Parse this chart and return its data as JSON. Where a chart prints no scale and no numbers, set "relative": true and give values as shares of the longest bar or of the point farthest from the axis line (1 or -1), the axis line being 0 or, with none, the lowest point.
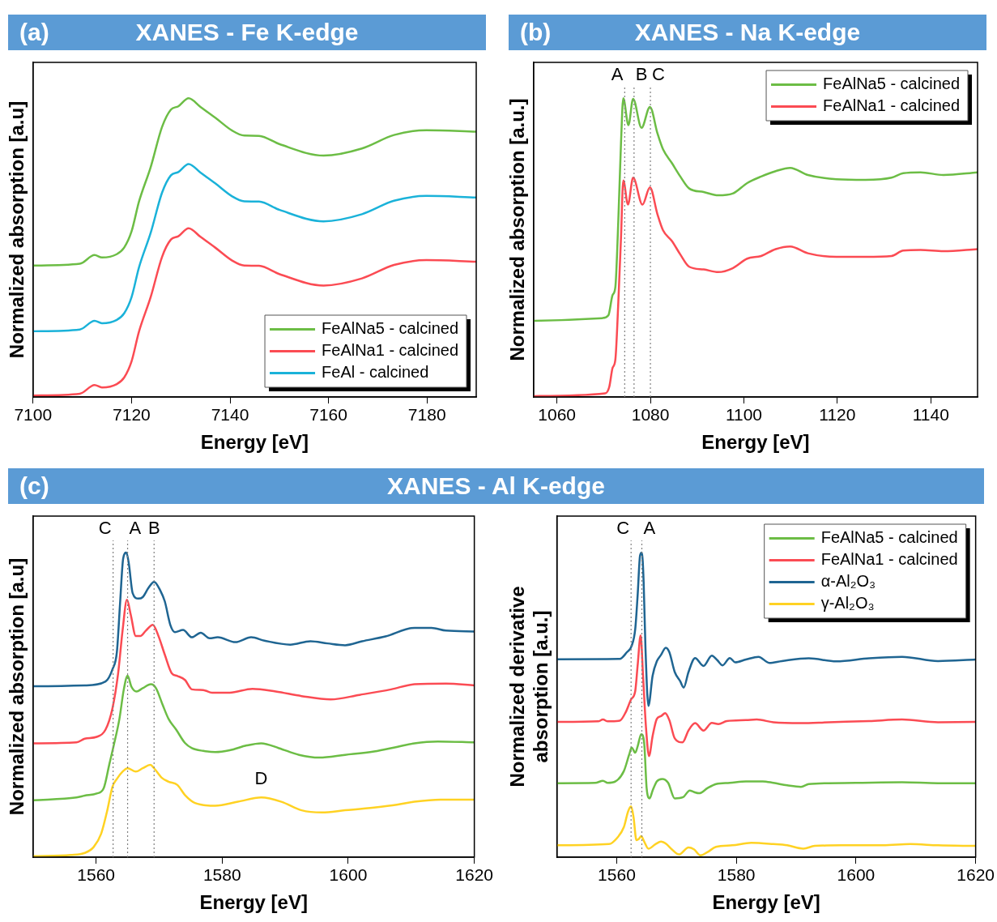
{
  "chart_data": [
    {
      "type": "line",
      "title": "XANES - Fe K-edge",
      "annotations": [
        "(a)"
      ],
      "xlabel": "Energy [eV]",
      "ylabel": "Normalized absorption [a.u]",
      "relative": true,
      "xlim": [
        7100,
        7190
      ],
      "xticks": [
        7100,
        7120,
        7140,
        7160,
        7180
      ],
      "legend": "bottom right",
      "marker": "none",
      "line_style": "solid",
      "grid": false,
      "series": [
        {
          "name": "FeAlNa5 - calcined",
          "color": "#6cbd45",
          "x": [
            7100,
            7109.5,
            7112.5,
            7114,
            7117,
            7118.5,
            7120,
            7121.5,
            7123.9,
            7126.2,
            7128,
            7129.5,
            7131.6,
            7134,
            7137,
            7140.5,
            7142.9,
            7145.9,
            7150.1,
            7159,
            7166.8,
            7173.3,
            7179.9,
            7190
          ],
          "values": [
            0.44,
            0.446,
            0.475,
            0.467,
            0.478,
            0.5,
            0.554,
            0.653,
            0.77,
            0.904,
            0.962,
            0.973,
            1.0,
            0.971,
            0.935,
            0.891,
            0.875,
            0.874,
            0.846,
            0.808,
            0.832,
            0.877,
            0.893,
            0.888
          ]
        },
        {
          "name": "FeAlNa1 - calcined",
          "color": "#fb4b53",
          "x": [
            7100,
            7109.5,
            7112.5,
            7114,
            7117,
            7118.5,
            7120,
            7121.5,
            7123.9,
            7126.2,
            7128,
            7129.5,
            7131.6,
            7134,
            7137,
            7140.5,
            7142.9,
            7145.9,
            7150.1,
            7159,
            7166.8,
            7173.3,
            7179.9,
            7190
          ],
          "values": [
            0.005,
            0.011,
            0.04,
            0.032,
            0.043,
            0.065,
            0.119,
            0.218,
            0.335,
            0.469,
            0.527,
            0.538,
            0.565,
            0.536,
            0.5,
            0.456,
            0.44,
            0.439,
            0.411,
            0.373,
            0.397,
            0.442,
            0.458,
            0.453
          ]
        },
        {
          "name": "FeAl - calcined",
          "color": "#1ab2d9",
          "x": [
            7100,
            7109.5,
            7112.5,
            7114,
            7117,
            7118.5,
            7120,
            7121.5,
            7123.9,
            7126.2,
            7128,
            7129.5,
            7131.6,
            7134,
            7137,
            7140.5,
            7142.9,
            7145.9,
            7150.1,
            7159,
            7166.8,
            7173.3,
            7179.9,
            7190
          ],
          "values": [
            0.22,
            0.226,
            0.255,
            0.247,
            0.258,
            0.28,
            0.334,
            0.433,
            0.55,
            0.684,
            0.742,
            0.753,
            0.78,
            0.751,
            0.715,
            0.671,
            0.655,
            0.654,
            0.626,
            0.588,
            0.612,
            0.657,
            0.673,
            0.668
          ]
        }
      ]
    },
    {
      "type": "line",
      "title": "XANES - Na K-edge",
      "annotations": [
        "(b)"
      ],
      "xlabel": "Energy [eV]",
      "ylabel": "Normalized absorption [a.u.]",
      "relative": true,
      "xlim": [
        1055,
        1150
      ],
      "xticks": [
        1060,
        1080,
        1100,
        1120,
        1140
      ],
      "legend": "top right",
      "marker": "none",
      "line_style": "solid",
      "grid": false,
      "ref_lines": [
        {
          "axis": "x",
          "value": 1074.5,
          "label": "A",
          "color": "#808080",
          "line_style": "dotted"
        },
        {
          "axis": "x",
          "value": 1076.5,
          "label": "B",
          "color": "#808080",
          "line_style": "dotted"
        },
        {
          "axis": "x",
          "value": 1080,
          "label": "C",
          "color": "#808080",
          "line_style": "dotted"
        }
      ],
      "series": [
        {
          "name": "FeAlNa5 - calcined",
          "color": "#6cbd45",
          "x": [
            1055,
            1069.7,
            1071,
            1071.9,
            1072.5,
            1073.1,
            1073.7,
            1074.2,
            1075.3,
            1076.3,
            1078.1,
            1079.9,
            1081.5,
            1082.7,
            1084.6,
            1086.4,
            1088.3,
            1091.4,
            1094.5,
            1097.6,
            1100.7,
            1103.7,
            1106.8,
            1109.9,
            1113.7,
            1119.8,
            1126,
            1131.6,
            1134.1,
            1137.8,
            1142.7,
            1150
          ],
          "values": [
            0.255,
            0.264,
            0.273,
            0.341,
            0.368,
            0.576,
            0.847,
            1.0,
            0.91,
            0.998,
            0.901,
            0.971,
            0.883,
            0.829,
            0.783,
            0.738,
            0.698,
            0.686,
            0.675,
            0.681,
            0.716,
            0.738,
            0.756,
            0.767,
            0.743,
            0.729,
            0.727,
            0.734,
            0.749,
            0.752,
            0.743,
            0.752
          ]
        },
        {
          "name": "FeAlNa1 - calcined",
          "color": "#fb4b53",
          "x": [
            1055,
            1070.3,
            1071.2,
            1071.9,
            1072.5,
            1073.1,
            1073.7,
            1074.2,
            1075.2,
            1076.3,
            1078.3,
            1079.9,
            1081.5,
            1082.7,
            1084.6,
            1086.4,
            1088.3,
            1091.4,
            1094.5,
            1097.6,
            1100.7,
            1103.7,
            1106.8,
            1109.9,
            1113.7,
            1119.8,
            1126,
            1131.6,
            1134.1,
            1137.8,
            1142.7,
            1150
          ],
          "values": [
            0.003,
            0.012,
            0.034,
            0.097,
            0.125,
            0.305,
            0.531,
            0.725,
            0.644,
            0.734,
            0.644,
            0.702,
            0.612,
            0.558,
            0.522,
            0.477,
            0.436,
            0.427,
            0.418,
            0.431,
            0.463,
            0.472,
            0.495,
            0.504,
            0.481,
            0.469,
            0.469,
            0.472,
            0.49,
            0.492,
            0.488,
            0.495
          ]
        }
      ]
    },
    {
      "type": "line",
      "title": "XANES - Al K-edge",
      "annotations": [
        "(c)",
        {
          "text": "D",
          "x": 1586.2,
          "y": 0.196
        }
      ],
      "xlabel": "Energy [eV]",
      "ylabel": "Normalized absorption [a.u]",
      "relative": true,
      "xlim": [
        1550,
        1620
      ],
      "xticks": [
        1560,
        1580,
        1600,
        1620
      ],
      "marker": "none",
      "line_style": "solid",
      "grid": false,
      "ref_lines": [
        {
          "axis": "x",
          "value": 1562.7,
          "label": "C",
          "color": "#808080",
          "line_style": "dotted"
        },
        {
          "axis": "x",
          "value": 1565,
          "label": "A",
          "color": "#808080",
          "line_style": "dotted"
        },
        {
          "axis": "x",
          "value": 1569.2,
          "label": "B",
          "color": "#808080",
          "line_style": "dotted"
        }
      ],
      "series": [
        {
          "color": "#1f6592",
          "x": [
            1550,
            1558.2,
            1561.5,
            1562.6,
            1563.3,
            1563.8,
            1564.3,
            1564.8,
            1565.2,
            1565.8,
            1566.7,
            1567.4,
            1568.3,
            1569.2,
            1570.2,
            1570.9,
            1571.8,
            1572.5,
            1573.8,
            1575.2,
            1576.6,
            1578,
            1579.3,
            1582.1,
            1584.6,
            1586.7,
            1590.8,
            1594,
            1596.7,
            1599.5,
            1602.2,
            1605.9,
            1610.5,
            1613.2,
            1615.5,
            1620
          ],
          "values": [
            0.561,
            0.564,
            0.577,
            0.617,
            0.674,
            0.832,
            0.981,
            1.0,
            0.963,
            0.867,
            0.849,
            0.854,
            0.884,
            0.904,
            0.875,
            0.84,
            0.761,
            0.739,
            0.746,
            0.722,
            0.737,
            0.719,
            0.722,
            0.706,
            0.722,
            0.711,
            0.698,
            0.709,
            0.702,
            0.696,
            0.709,
            0.725,
            0.753,
            0.753,
            0.744,
            0.741
          ]
        },
        {
          "color": "#fb4b53",
          "x": [
            1550,
            1556.9,
            1558.2,
            1560.1,
            1561.5,
            1562.6,
            1563.5,
            1564.2,
            1564.9,
            1565.5,
            1566.3,
            1567,
            1567.9,
            1569,
            1569.9,
            1570.9,
            1572,
            1572.9,
            1574.1,
            1575.2,
            1577,
            1578.4,
            1581.2,
            1584.8,
            1588.5,
            1592.6,
            1597.2,
            1601.8,
            1606.8,
            1610.5,
            1615.5,
            1620
          ],
          "values": [
            0.374,
            0.377,
            0.389,
            0.395,
            0.419,
            0.489,
            0.604,
            0.744,
            0.845,
            0.796,
            0.726,
            0.726,
            0.744,
            0.763,
            0.726,
            0.665,
            0.604,
            0.595,
            0.582,
            0.551,
            0.549,
            0.54,
            0.54,
            0.553,
            0.544,
            0.529,
            0.518,
            0.533,
            0.551,
            0.568,
            0.57,
            0.564
          ]
        },
        {
          "color": "#6cbd45",
          "x": [
            1550,
            1556.9,
            1558.2,
            1560.1,
            1561.2,
            1562.1,
            1562.8,
            1563.7,
            1564.4,
            1565,
            1565.6,
            1566.4,
            1567.4,
            1568.7,
            1569.5,
            1570.6,
            1571.5,
            1572.7,
            1574.1,
            1575.2,
            1577,
            1578.9,
            1581.2,
            1583.9,
            1586.2,
            1589,
            1592.2,
            1595.4,
            1599.5,
            1604.1,
            1607.7,
            1610.5,
            1614.2,
            1620
          ],
          "values": [
            0.187,
            0.196,
            0.202,
            0.209,
            0.226,
            0.305,
            0.367,
            0.454,
            0.551,
            0.596,
            0.56,
            0.544,
            0.555,
            0.568,
            0.555,
            0.498,
            0.454,
            0.419,
            0.375,
            0.358,
            0.349,
            0.345,
            0.351,
            0.367,
            0.374,
            0.358,
            0.336,
            0.327,
            0.336,
            0.347,
            0.362,
            0.374,
            0.38,
            0.377
          ]
        },
        {
          "color": "#ffd223",
          "x": [
            1550,
            1556,
            1558.2,
            1559.6,
            1560.8,
            1561.7,
            1562.6,
            1563.3,
            1564.2,
            1565,
            1566.3,
            1567.4,
            1568.6,
            1569.2,
            1570.4,
            1571.5,
            1572.9,
            1574.1,
            1575.7,
            1578.9,
            1582.5,
            1586.2,
            1589.4,
            1592.6,
            1595.8,
            1599.5,
            1604.1,
            1607.7,
            1610.5,
            1614.6,
            1620
          ],
          "values": [
            0.003,
            0.007,
            0.014,
            0.033,
            0.077,
            0.147,
            0.231,
            0.257,
            0.281,
            0.292,
            0.281,
            0.292,
            0.303,
            0.292,
            0.261,
            0.248,
            0.237,
            0.204,
            0.178,
            0.169,
            0.182,
            0.196,
            0.182,
            0.154,
            0.147,
            0.154,
            0.163,
            0.172,
            0.182,
            0.189,
            0.189
          ]
        }
      ]
    },
    {
      "type": "line",
      "xlabel": "Energy [eV]",
      "ylabel": "Normalized derivative absorption [a.u.]",
      "relative": true,
      "xlim": [
        1550,
        1620
      ],
      "xticks": [
        1560,
        1580,
        1600,
        1620
      ],
      "legend": "top right",
      "marker": "none",
      "line_style": "solid",
      "grid": false,
      "ref_lines": [
        {
          "axis": "x",
          "value": 1562.4,
          "label": "C",
          "color": "#808080",
          "line_style": "dotted"
        },
        {
          "axis": "x",
          "value": 1564.2,
          "label": "A",
          "color": "#808080",
          "line_style": "dotted"
        }
      ],
      "series": [
        {
          "name": "FeAlNa5 - calcined",
          "color": "#6cbd45",
          "x": [
            1550,
            1556.4,
            1557.7,
            1558.5,
            1559.8,
            1561.2,
            1562.1,
            1562.5,
            1563.1,
            1563.5,
            1564.1,
            1564.6,
            1565,
            1565.5,
            1566,
            1566.7,
            1567.6,
            1568.6,
            1569.7,
            1571.1,
            1572.2,
            1572.9,
            1573.8,
            1575.2,
            1576.6,
            1578.9,
            1581.6,
            1584.4,
            1586.2,
            1588.5,
            1590.8,
            1592.1,
            1595.4,
            1599.9,
            1607.7,
            1613.7,
            1620
          ],
          "values": [
            0.243,
            0.244,
            0.251,
            0.244,
            0.249,
            0.283,
            0.338,
            0.36,
            0.343,
            0.364,
            0.404,
            0.373,
            0.227,
            0.193,
            0.219,
            0.249,
            0.257,
            0.244,
            0.193,
            0.197,
            0.219,
            0.214,
            0.21,
            0.227,
            0.24,
            0.244,
            0.249,
            0.249,
            0.244,
            0.236,
            0.231,
            0.24,
            0.243,
            0.244,
            0.246,
            0.243,
            0.243
          ]
        },
        {
          "name": "FeAlNa1 - calcined",
          "color": "#fb4b53",
          "x": [
            1550,
            1556.9,
            1557.7,
            1558.5,
            1560.5,
            1561.5,
            1562.4,
            1563.1,
            1563.5,
            1564,
            1564.4,
            1564.9,
            1565.4,
            1566,
            1566.7,
            1567.4,
            1568.1,
            1568.8,
            1569.7,
            1571,
            1572,
            1573.1,
            1574.5,
            1575.9,
            1577,
            1578.4,
            1581.6,
            1583.4,
            1586.2,
            1590.8,
            1595.4,
            1602.2,
            1607.7,
            1613.7,
            1620
          ],
          "values": [
            0.444,
            0.446,
            0.452,
            0.446,
            0.448,
            0.476,
            0.518,
            0.546,
            0.63,
            0.728,
            0.596,
            0.424,
            0.332,
            0.398,
            0.454,
            0.463,
            0.473,
            0.45,
            0.39,
            0.377,
            0.416,
            0.44,
            0.416,
            0.441,
            0.437,
            0.447,
            0.45,
            0.452,
            0.443,
            0.44,
            0.443,
            0.447,
            0.452,
            0.443,
            0.444
          ]
        },
        {
          "name": "α-Al₂O₃",
          "color": "#1f6592",
          "x": [
            1550,
            1560.5,
            1561.7,
            1562.5,
            1563.1,
            1563.5,
            1563.9,
            1564.2,
            1564.5,
            1564.8,
            1565.3,
            1566,
            1566.7,
            1567.4,
            1568.2,
            1568.8,
            1569.7,
            1570.6,
            1571.2,
            1572,
            1573.1,
            1574.5,
            1575.9,
            1576.8,
            1577.7,
            1578.9,
            1579.8,
            1581.6,
            1583.7,
            1585.5,
            1587.6,
            1592.1,
            1596.7,
            1602.2,
            1607.7,
            1613.7,
            1620
          ],
          "values": [
            0.65,
            0.651,
            0.673,
            0.694,
            0.75,
            0.861,
            0.99,
            1.0,
            0.904,
            0.69,
            0.497,
            0.596,
            0.643,
            0.664,
            0.688,
            0.673,
            0.608,
            0.578,
            0.557,
            0.608,
            0.654,
            0.628,
            0.662,
            0.647,
            0.63,
            0.654,
            0.64,
            0.649,
            0.658,
            0.638,
            0.644,
            0.653,
            0.643,
            0.653,
            0.658,
            0.644,
            0.649
          ]
        },
        {
          "name": "γ-Al₂O₃",
          "color": "#ffd223",
          "x": [
            1550,
            1558.7,
            1560.1,
            1561.2,
            1561.9,
            1562.4,
            1562.8,
            1563.3,
            1563.7,
            1564.1,
            1564.6,
            1565.3,
            1566.5,
            1567.4,
            1568.3,
            1569.2,
            1570.4,
            1572,
            1572.9,
            1574,
            1575.2,
            1576.6,
            1579.3,
            1582.5,
            1586.2,
            1588.5,
            1591.2,
            1593.1,
            1597.6,
            1604.5,
            1609.1,
            1613.7,
            1620
          ],
          "values": [
            0.039,
            0.043,
            0.064,
            0.099,
            0.15,
            0.167,
            0.133,
            0.056,
            0.06,
            0.069,
            0.051,
            0.028,
            0.043,
            0.051,
            0.043,
            0.026,
            0.009,
            0.032,
            0.026,
            0.006,
            0.017,
            0.034,
            0.039,
            0.047,
            0.043,
            0.039,
            0.028,
            0.037,
            0.039,
            0.039,
            0.043,
            0.039,
            0.037
          ]
        }
      ]
    }
  ]
}
